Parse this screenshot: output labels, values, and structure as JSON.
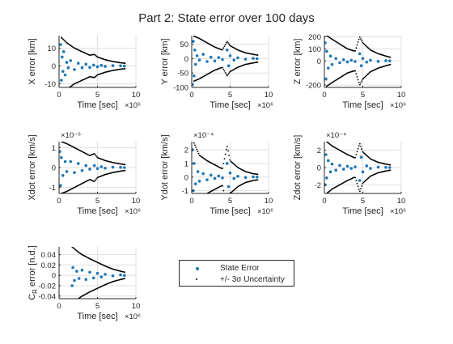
{
  "figure_title": "Part 2: State error over 100 days",
  "x_exponent": "×10⁶",
  "colors": {
    "error": "#1f77b4",
    "sigma": "#000000",
    "grid": "#dfdfdf",
    "axis": "#262626"
  },
  "legend": {
    "error_label": "State Error",
    "sigma_label": "+/- 3σ Uncertainty",
    "placement": "below-center"
  },
  "chart_data": [
    {
      "type": "scatter",
      "id": "x",
      "ylabel": "X error [km]",
      "xlabel": "Time [sec]",
      "xlim": [
        0,
        10
      ],
      "ylim": [
        -12,
        17
      ],
      "xticks": [
        "0",
        "5",
        "10"
      ],
      "yticks": [
        {
          "v": -10,
          "t": "-10"
        },
        {
          "v": 0,
          "t": "0"
        },
        {
          "v": 10,
          "t": "10"
        }
      ],
      "y_exponent": "",
      "sigma_envelope": [
        [
          0.3,
          16
        ],
        [
          1,
          13
        ],
        [
          2,
          10
        ],
        [
          3,
          8
        ],
        [
          4,
          6
        ],
        [
          4.6,
          6.5
        ],
        [
          5,
          5
        ],
        [
          6,
          3.5
        ],
        [
          7,
          2.5
        ],
        [
          8,
          1.8
        ],
        [
          8.6,
          1.5
        ]
      ],
      "error_samples": [
        [
          0.2,
          12
        ],
        [
          0.3,
          -8
        ],
        [
          0.4,
          5
        ],
        [
          0.5,
          -3
        ],
        [
          0.6,
          8
        ],
        [
          0.8,
          -5
        ],
        [
          1,
          2
        ],
        [
          1.2,
          -1
        ],
        [
          1.5,
          3
        ],
        [
          2,
          -2
        ],
        [
          2.5,
          1.5
        ],
        [
          3,
          -1
        ],
        [
          3.5,
          1
        ],
        [
          4,
          -0.8
        ],
        [
          4.5,
          0.5
        ],
        [
          5,
          -0.4
        ],
        [
          5.5,
          0.3
        ],
        [
          6,
          -0.2
        ],
        [
          7,
          0.2
        ],
        [
          8,
          0.1
        ],
        [
          8.5,
          0
        ]
      ]
    },
    {
      "type": "scatter",
      "id": "y",
      "ylabel": "Y error [km]",
      "xlabel": "Time [sec]",
      "xlim": [
        0,
        10
      ],
      "ylim": [
        -100,
        80
      ],
      "xticks": [
        "0",
        "5",
        "10"
      ],
      "yticks": [
        {
          "v": -100,
          "t": "-100"
        },
        {
          "v": -50,
          "t": "-50"
        },
        {
          "v": 0,
          "t": "0"
        },
        {
          "v": 50,
          "t": "50"
        }
      ],
      "y_exponent": "",
      "sigma_envelope": [
        [
          0.3,
          78
        ],
        [
          1,
          70
        ],
        [
          2,
          55
        ],
        [
          3,
          40
        ],
        [
          4,
          30
        ],
        [
          4.6,
          60
        ],
        [
          5,
          45
        ],
        [
          6,
          30
        ],
        [
          7,
          20
        ],
        [
          8,
          15
        ],
        [
          8.6,
          12
        ]
      ],
      "error_samples": [
        [
          0.1,
          -90
        ],
        [
          0.2,
          60
        ],
        [
          0.3,
          -60
        ],
        [
          0.4,
          30
        ],
        [
          0.5,
          -20
        ],
        [
          0.7,
          10
        ],
        [
          1,
          -5
        ],
        [
          1.5,
          15
        ],
        [
          2,
          -10
        ],
        [
          2.5,
          5
        ],
        [
          3,
          -8
        ],
        [
          3.5,
          4
        ],
        [
          4,
          -3
        ],
        [
          4.6,
          30
        ],
        [
          4.8,
          -25
        ],
        [
          5,
          10
        ],
        [
          5.5,
          -5
        ],
        [
          6,
          3
        ],
        [
          7,
          -2
        ],
        [
          8,
          1
        ],
        [
          8.5,
          0
        ]
      ]
    },
    {
      "type": "scatter",
      "id": "z",
      "ylabel": "Z error [km]",
      "xlabel": "Time [sec]",
      "xlim": [
        0,
        10
      ],
      "ylim": [
        -220,
        210
      ],
      "xticks": [
        "0",
        "5",
        "10"
      ],
      "yticks": [
        {
          "v": -200,
          "t": "-200"
        },
        {
          "v": 0,
          "t": "0"
        },
        {
          "v": 100,
          "t": "100"
        },
        {
          "v": 200,
          "t": "200"
        }
      ],
      "y_exponent": "",
      "sigma_envelope": [
        [
          0.3,
          210
        ],
        [
          1,
          180
        ],
        [
          2,
          140
        ],
        [
          3,
          100
        ],
        [
          4,
          80
        ],
        [
          4.6,
          200
        ],
        [
          5,
          150
        ],
        [
          6,
          90
        ],
        [
          7,
          60
        ],
        [
          8,
          40
        ],
        [
          8.6,
          30
        ]
      ],
      "error_samples": [
        [
          0.1,
          150
        ],
        [
          0.2,
          -150
        ],
        [
          0.3,
          80
        ],
        [
          0.5,
          -60
        ],
        [
          0.8,
          40
        ],
        [
          1,
          -30
        ],
        [
          1.5,
          20
        ],
        [
          2,
          -15
        ],
        [
          2.5,
          10
        ],
        [
          3,
          -8
        ],
        [
          3.5,
          6
        ],
        [
          4,
          -5
        ],
        [
          4.6,
          60
        ],
        [
          4.8,
          -40
        ],
        [
          5,
          20
        ],
        [
          5.5,
          -10
        ],
        [
          6,
          6
        ],
        [
          7,
          -4
        ],
        [
          8,
          2
        ],
        [
          8.5,
          0
        ]
      ]
    },
    {
      "type": "scatter",
      "id": "xdot",
      "ylabel": "Xdot error [km/s]",
      "xlabel": "Time [sec]",
      "xlim": [
        0,
        10
      ],
      "ylim": [
        -1.3,
        1.3
      ],
      "xticks": [
        "0",
        "5",
        "10"
      ],
      "yticks": [
        {
          "v": -1,
          "t": "-1"
        },
        {
          "v": 0,
          "t": "0"
        },
        {
          "v": 1,
          "t": "1"
        }
      ],
      "y_exponent": "×10⁻⁶",
      "sigma_envelope": [
        [
          0.3,
          1.3
        ],
        [
          1,
          1.2
        ],
        [
          2,
          1.0
        ],
        [
          3,
          0.8
        ],
        [
          4,
          0.6
        ],
        [
          4.6,
          0.7
        ],
        [
          5,
          0.5
        ],
        [
          6,
          0.35
        ],
        [
          7,
          0.25
        ],
        [
          8,
          0.18
        ],
        [
          8.6,
          0.15
        ]
      ],
      "error_samples": [
        [
          0.1,
          0.8
        ],
        [
          0.2,
          -0.9
        ],
        [
          0.3,
          0.5
        ],
        [
          0.5,
          -0.4
        ],
        [
          0.8,
          0.3
        ],
        [
          1,
          -0.2
        ],
        [
          1.5,
          0.3
        ],
        [
          2,
          -0.25
        ],
        [
          2.5,
          0.2
        ],
        [
          3,
          -0.15
        ],
        [
          3.5,
          0.1
        ],
        [
          4,
          -0.08
        ],
        [
          4.6,
          0.1
        ],
        [
          5,
          -0.05
        ],
        [
          5.5,
          0.04
        ],
        [
          6,
          -0.03
        ],
        [
          7,
          0.02
        ],
        [
          8,
          0.01
        ],
        [
          8.5,
          0
        ]
      ]
    },
    {
      "type": "scatter",
      "id": "ydot",
      "ylabel": "Ydot error [km/s]",
      "xlabel": "Time [sec]",
      "xlim": [
        0,
        10
      ],
      "ylim": [
        -1.2,
        2.6
      ],
      "xticks": [
        "0",
        "5",
        "10"
      ],
      "yticks": [
        {
          "v": -1,
          "t": "-1"
        },
        {
          "v": 0,
          "t": "0"
        },
        {
          "v": 1,
          "t": "1"
        },
        {
          "v": 2,
          "t": "2"
        }
      ],
      "y_exponent": "×10⁻⁴",
      "sigma_envelope": [
        [
          0.3,
          2.5
        ],
        [
          1,
          1.6
        ],
        [
          2,
          1.2
        ],
        [
          3,
          0.9
        ],
        [
          4,
          0.6
        ],
        [
          4.6,
          2.3
        ],
        [
          5,
          1.2
        ],
        [
          6,
          0.7
        ],
        [
          7,
          0.4
        ],
        [
          8,
          0.25
        ],
        [
          8.6,
          0.2
        ]
      ],
      "error_samples": [
        [
          0.1,
          2.0
        ],
        [
          0.2,
          -1.0
        ],
        [
          0.3,
          1.0
        ],
        [
          0.5,
          -0.5
        ],
        [
          0.8,
          0.4
        ],
        [
          1,
          -0.3
        ],
        [
          1.5,
          0.25
        ],
        [
          2,
          -0.2
        ],
        [
          2.5,
          0.15
        ],
        [
          3,
          -0.1
        ],
        [
          3.5,
          0.08
        ],
        [
          4,
          -0.06
        ],
        [
          4.6,
          1.0
        ],
        [
          4.8,
          -0.7
        ],
        [
          5,
          0.3
        ],
        [
          5.5,
          -0.1
        ],
        [
          6,
          0.06
        ],
        [
          7,
          -0.03
        ],
        [
          8,
          0.02
        ],
        [
          8.5,
          0
        ]
      ]
    },
    {
      "type": "scatter",
      "id": "zdot",
      "ylabel": "Zdot error [km/s]",
      "xlabel": "Time [sec]",
      "xlim": [
        0,
        10
      ],
      "ylim": [
        -3,
        3
      ],
      "xticks": [
        "0",
        "5",
        "10"
      ],
      "yticks": [
        {
          "v": -2,
          "t": "-2"
        },
        {
          "v": 0,
          "t": "0"
        },
        {
          "v": 2,
          "t": "2"
        }
      ],
      "y_exponent": "×10⁻⁴",
      "sigma_envelope": [
        [
          0.3,
          3
        ],
        [
          1,
          2.5
        ],
        [
          2,
          2.0
        ],
        [
          3,
          1.5
        ],
        [
          4,
          1.1
        ],
        [
          4.6,
          2.8
        ],
        [
          5,
          1.8
        ],
        [
          6,
          1.0
        ],
        [
          7,
          0.6
        ],
        [
          8,
          0.4
        ],
        [
          8.6,
          0.3
        ]
      ],
      "error_samples": [
        [
          0.1,
          -2.0
        ],
        [
          0.2,
          1.5
        ],
        [
          0.3,
          -1.2
        ],
        [
          0.5,
          0.8
        ],
        [
          0.8,
          -0.5
        ],
        [
          1,
          0.4
        ],
        [
          1.5,
          -0.3
        ],
        [
          2,
          0.25
        ],
        [
          2.5,
          -0.2
        ],
        [
          3,
          0.15
        ],
        [
          3.5,
          -0.1
        ],
        [
          4,
          0.08
        ],
        [
          4.6,
          -1.5
        ],
        [
          4.8,
          1.2
        ],
        [
          5,
          -0.5
        ],
        [
          5.5,
          0.2
        ],
        [
          6,
          -0.1
        ],
        [
          7,
          0.05
        ],
        [
          8,
          0.02
        ],
        [
          8.5,
          0
        ]
      ]
    },
    {
      "type": "scatter",
      "id": "cr",
      "ylabel": "C_R error [n.d.]",
      "xlabel": "Time [sec]",
      "xlim": [
        0,
        10
      ],
      "ylim": [
        -0.045,
        0.055
      ],
      "xticks": [
        "0",
        "5",
        "10"
      ],
      "yticks": [
        {
          "v": -0.04,
          "t": "-0.04"
        },
        {
          "v": -0.02,
          "t": "-0.02"
        },
        {
          "v": 0,
          "t": "0"
        },
        {
          "v": 0.02,
          "t": "0.02"
        },
        {
          "v": 0.04,
          "t": "0.04"
        }
      ],
      "y_exponent": "",
      "sigma_envelope": [
        [
          1.7,
          0.055
        ],
        [
          2.5,
          0.045
        ],
        [
          3,
          0.04
        ],
        [
          4,
          0.032
        ],
        [
          5,
          0.025
        ],
        [
          6,
          0.018
        ],
        [
          7,
          0.012
        ],
        [
          8,
          0.008
        ],
        [
          8.6,
          0.006
        ]
      ],
      "error_samples": [
        [
          1.7,
          -0.02
        ],
        [
          1.8,
          0.015
        ],
        [
          2,
          -0.01
        ],
        [
          2.3,
          0.008
        ],
        [
          2.6,
          -0.006
        ],
        [
          3,
          0.01
        ],
        [
          3.5,
          -0.008
        ],
        [
          4,
          0.006
        ],
        [
          4.5,
          -0.005
        ],
        [
          5,
          0.004
        ],
        [
          5.5,
          -0.003
        ],
        [
          6,
          0.002
        ],
        [
          7,
          -0.001
        ],
        [
          8,
          0.001
        ],
        [
          8.5,
          0
        ]
      ]
    }
  ]
}
